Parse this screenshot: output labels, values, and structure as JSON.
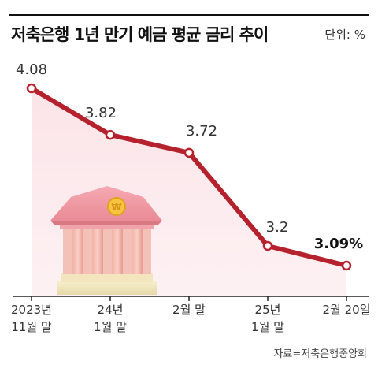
{
  "header": {
    "title": "저축은행 1년 만기 예금 평균 금리 추이",
    "unit": "단위: %"
  },
  "source": "자료=저축은행중앙회",
  "colors": {
    "line": "#b5222e",
    "area": "#fbe9ec",
    "axis": "#222222"
  },
  "chart_data": {
    "type": "line",
    "title": "저축은행 1년 만기 예금 평균 금리 추이",
    "unit": "%",
    "categories": [
      [
        "2023년",
        "11월 말"
      ],
      [
        "24년",
        "1월 말"
      ],
      [
        "2월 말"
      ],
      [
        "25년",
        "1월 말"
      ],
      [
        "2월 20일"
      ]
    ],
    "series": [
      {
        "values": [
          4.08,
          3.82,
          3.72,
          3.2,
          3.09
        ]
      }
    ],
    "data_labels": [
      "4.08",
      "3.82",
      "3.72",
      "3.2",
      "3.09%"
    ],
    "grid": false,
    "illustration": "bank-building-with-won-coin"
  }
}
